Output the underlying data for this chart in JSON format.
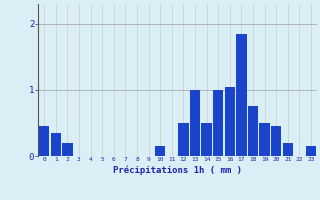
{
  "hours": [
    0,
    1,
    2,
    3,
    4,
    5,
    6,
    7,
    8,
    9,
    10,
    11,
    12,
    13,
    14,
    15,
    16,
    17,
    18,
    19,
    20,
    21,
    22,
    23
  ],
  "values": [
    0.45,
    0.35,
    0.2,
    0.0,
    0.0,
    0.0,
    0.0,
    0.0,
    0.0,
    0.0,
    0.15,
    0.0,
    0.5,
    1.0,
    0.5,
    1.0,
    1.05,
    1.85,
    0.75,
    0.5,
    0.45,
    0.2,
    0.0,
    0.15
  ],
  "bar_color": "#1a44cc",
  "background_color": "#d9eef5",
  "grid_color_h": "#aaaaaa",
  "grid_color_v": "#bbbbbb",
  "xlabel": "Précipitations 1h ( mm )",
  "ylim": [
    0,
    2.3
  ],
  "xlim": [
    -0.5,
    23.5
  ],
  "yticks": [
    0,
    1,
    2
  ],
  "tick_color": "#2222aa",
  "label_fontsize": 7
}
